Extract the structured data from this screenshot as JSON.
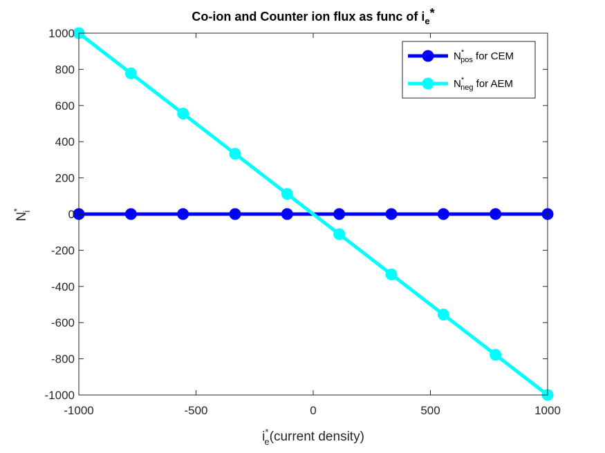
{
  "chart_data": {
    "type": "line",
    "title": {
      "main": "Co-ion and Counter ion flux as func of i",
      "sub": "e",
      "suffix": "*"
    },
    "xlabel": {
      "main": "i",
      "sup": "*",
      "sub": "e",
      "rest": "(current density)"
    },
    "ylabel": {
      "main": "N",
      "sup": "*",
      "sub": "i"
    },
    "xlim": [
      -1000,
      1000
    ],
    "ylim": [
      -1000,
      1000
    ],
    "xticks": [
      -1000,
      -500,
      0,
      500,
      1000
    ],
    "yticks": [
      -1000,
      -800,
      -600,
      -400,
      -200,
      0,
      200,
      400,
      600,
      800,
      1000
    ],
    "grid": false,
    "legend_position": "top-right",
    "x": [
      -1000,
      -777.78,
      -555.56,
      -333.33,
      -111.11,
      111.11,
      333.33,
      555.56,
      777.78,
      1000
    ],
    "series": [
      {
        "name": {
          "main": "N",
          "sup": "*",
          "sub": "pos",
          "rest": " for CEM"
        },
        "color": "#0000ff",
        "marker": "circle",
        "values": [
          0,
          0,
          0,
          0,
          0,
          0,
          0,
          0,
          0,
          0
        ]
      },
      {
        "name": {
          "main": "N",
          "sup": "*",
          "sub": "neg",
          "rest": " for AEM"
        },
        "color": "#00ffff",
        "marker": "circle",
        "values": [
          1000,
          777.78,
          555.56,
          333.33,
          111.11,
          -111.11,
          -333.33,
          -555.56,
          -777.78,
          -1000
        ]
      }
    ]
  }
}
